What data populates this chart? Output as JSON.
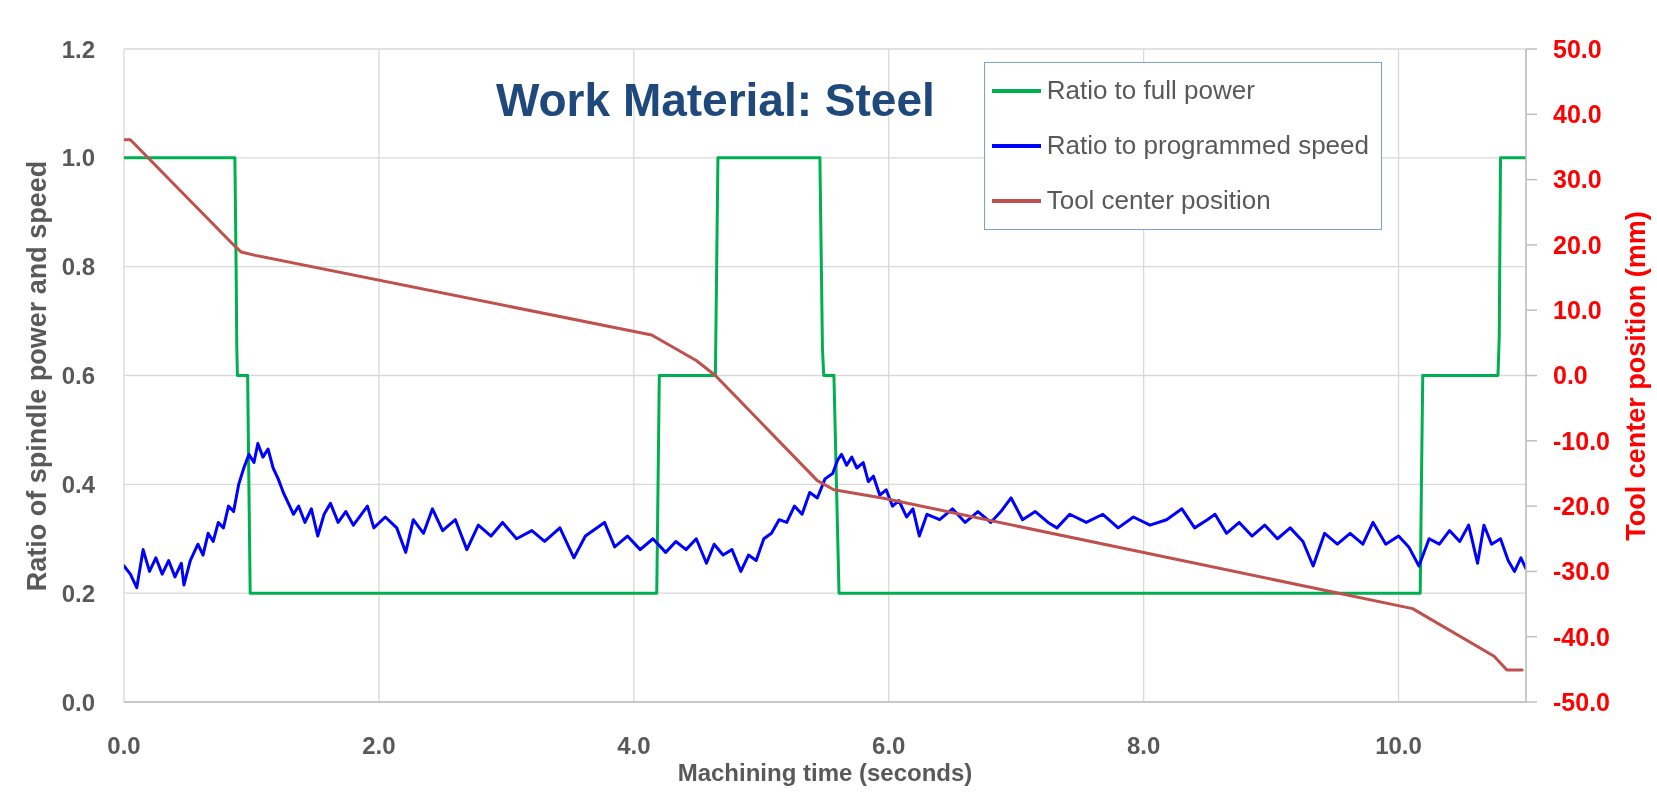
{
  "chart_data": {
    "type": "line",
    "title": "Work Material: Steel",
    "xlabel": "Machining time (seconds)",
    "ylabel": "Ratio of spindle power and speed",
    "y2label": "Tool center position (mm)",
    "xlim": [
      0,
      11
    ],
    "xticks": [
      {
        "value": 0,
        "label": "0.0"
      },
      {
        "value": 2,
        "label": "2.0"
      },
      {
        "value": 4,
        "label": "4.0"
      },
      {
        "value": 6,
        "label": "6.0"
      },
      {
        "value": 8,
        "label": "8.0"
      },
      {
        "value": 10,
        "label": "10.0"
      }
    ],
    "ylim": [
      0,
      1.2
    ],
    "yticks": [
      {
        "value": 0,
        "label": "0.0"
      },
      0.2,
      0.4,
      0.6,
      0.8,
      {
        "value": 1,
        "label": "1.0"
      },
      1.2
    ],
    "y2lim": [
      -50,
      50
    ],
    "y2ticks": [
      {
        "value": -50,
        "label": "-50.0"
      },
      {
        "value": -40,
        "label": "-40.0"
      },
      {
        "value": -30,
        "label": "-30.0"
      },
      {
        "value": -20,
        "label": "-20.0"
      },
      {
        "value": -10,
        "label": "-10.0"
      },
      {
        "value": 0,
        "label": "0.0"
      },
      {
        "value": 10,
        "label": "10.0"
      },
      {
        "value": 20,
        "label": "20.0"
      },
      {
        "value": 30,
        "label": "30.0"
      },
      {
        "value": 40,
        "label": "40.0"
      },
      {
        "value": 50,
        "label": "50.0"
      }
    ],
    "grid": true,
    "legend": "top right",
    "series": [
      {
        "name": "Ratio to full power",
        "color": "#00b050",
        "x": [
          0,
          0.87,
          0.88,
          0.885,
          0.89,
          0.97,
          0.99,
          4.18,
          4.2,
          4.64,
          4.66,
          5.46,
          5.48,
          5.49,
          5.57,
          5.61,
          10.17,
          10.18,
          10.19,
          10.78,
          10.79,
          10.8,
          11
        ],
        "values": [
          1,
          1,
          0.79,
          0.65,
          0.6,
          0.6,
          0.2,
          0.2,
          0.6,
          0.6,
          1,
          1,
          0.65,
          0.6,
          0.6,
          0.2,
          0.2,
          0.41,
          0.6,
          0.6,
          0.67,
          1,
          1
        ]
      },
      {
        "name": "Ratio to programmed speed",
        "color": "#0000ff",
        "x": [
          0,
          0.05,
          0.1,
          0.15,
          0.2,
          0.25,
          0.3,
          0.35,
          0.4,
          0.45,
          0.47,
          0.52,
          0.58,
          0.62,
          0.66,
          0.7,
          0.74,
          0.78,
          0.82,
          0.86,
          0.9,
          0.94,
          0.98,
          1.02,
          1.05,
          1.09,
          1.13,
          1.17,
          1.21,
          1.25,
          1.29,
          1.33,
          1.37,
          1.42,
          1.47,
          1.52,
          1.57,
          1.62,
          1.68,
          1.74,
          1.8,
          1.91,
          1.96,
          2.05,
          2.14,
          2.21,
          2.27,
          2.35,
          2.42,
          2.5,
          2.6,
          2.69,
          2.78,
          2.88,
          2.97,
          3.08,
          3.2,
          3.3,
          3.42,
          3.53,
          3.62,
          3.77,
          3.85,
          3.95,
          4.05,
          4.15,
          4.25,
          4.33,
          4.41,
          4.49,
          4.57,
          4.63,
          4.7,
          4.77,
          4.84,
          4.9,
          4.96,
          5.02,
          5.08,
          5.14,
          5.2,
          5.26,
          5.32,
          5.38,
          5.44,
          5.5,
          5.56,
          5.6,
          5.63,
          5.67,
          5.71,
          5.75,
          5.8,
          5.84,
          5.88,
          5.93,
          5.98,
          6.03,
          6.08,
          6.14,
          6.19,
          6.24,
          6.3,
          6.4,
          6.5,
          6.6,
          6.7,
          6.8,
          6.88,
          6.96,
          7.05,
          7.15,
          7.25,
          7.32,
          7.42,
          7.55,
          7.68,
          7.8,
          7.92,
          8.05,
          8.18,
          8.3,
          8.4,
          8.5,
          8.56,
          8.65,
          8.75,
          8.85,
          8.95,
          9.05,
          9.15,
          9.25,
          9.33,
          9.42,
          9.52,
          9.62,
          9.72,
          9.8,
          9.9,
          10,
          10.08,
          10.16,
          10.24,
          10.32,
          10.4,
          10.48,
          10.55,
          10.62,
          10.67,
          10.73,
          10.8,
          10.86,
          10.91,
          10.96,
          11
        ],
        "values": [
          0.25,
          0.235,
          0.21,
          0.28,
          0.24,
          0.265,
          0.235,
          0.26,
          0.23,
          0.255,
          0.215,
          0.26,
          0.29,
          0.27,
          0.31,
          0.295,
          0.33,
          0.32,
          0.36,
          0.35,
          0.4,
          0.43,
          0.455,
          0.44,
          0.475,
          0.45,
          0.465,
          0.43,
          0.41,
          0.385,
          0.365,
          0.345,
          0.36,
          0.33,
          0.355,
          0.305,
          0.345,
          0.365,
          0.33,
          0.35,
          0.325,
          0.36,
          0.32,
          0.34,
          0.32,
          0.275,
          0.335,
          0.31,
          0.355,
          0.315,
          0.335,
          0.28,
          0.325,
          0.305,
          0.33,
          0.3,
          0.315,
          0.295,
          0.32,
          0.265,
          0.305,
          0.33,
          0.285,
          0.305,
          0.28,
          0.3,
          0.275,
          0.295,
          0.28,
          0.3,
          0.255,
          0.29,
          0.27,
          0.28,
          0.24,
          0.27,
          0.26,
          0.3,
          0.31,
          0.335,
          0.33,
          0.36,
          0.345,
          0.385,
          0.375,
          0.41,
          0.42,
          0.445,
          0.455,
          0.435,
          0.45,
          0.43,
          0.44,
          0.405,
          0.415,
          0.38,
          0.39,
          0.36,
          0.37,
          0.34,
          0.355,
          0.305,
          0.345,
          0.335,
          0.355,
          0.33,
          0.35,
          0.33,
          0.35,
          0.375,
          0.335,
          0.35,
          0.33,
          0.32,
          0.345,
          0.33,
          0.345,
          0.32,
          0.34,
          0.325,
          0.335,
          0.355,
          0.32,
          0.335,
          0.345,
          0.31,
          0.33,
          0.305,
          0.325,
          0.3,
          0.32,
          0.295,
          0.25,
          0.31,
          0.29,
          0.31,
          0.29,
          0.33,
          0.29,
          0.305,
          0.285,
          0.25,
          0.3,
          0.29,
          0.315,
          0.295,
          0.325,
          0.255,
          0.325,
          0.29,
          0.3,
          0.26,
          0.24,
          0.265,
          0.245
        ]
      },
      {
        "name": "Tool center position",
        "color": "#c0504d",
        "axis": "y2",
        "x": [
          0,
          0.05,
          0.87,
          0.92,
          1.03,
          4.14,
          4.49,
          4.64,
          5.44,
          5.57,
          5.96,
          10.11,
          10.75,
          10.85,
          10.97
        ],
        "values": [
          36.1,
          36.1,
          19.8,
          18.9,
          18.4,
          6.2,
          2.3,
          0,
          -16.1,
          -17.5,
          -18.8,
          -35.7,
          -43,
          -45.1,
          -45.1
        ]
      }
    ]
  }
}
